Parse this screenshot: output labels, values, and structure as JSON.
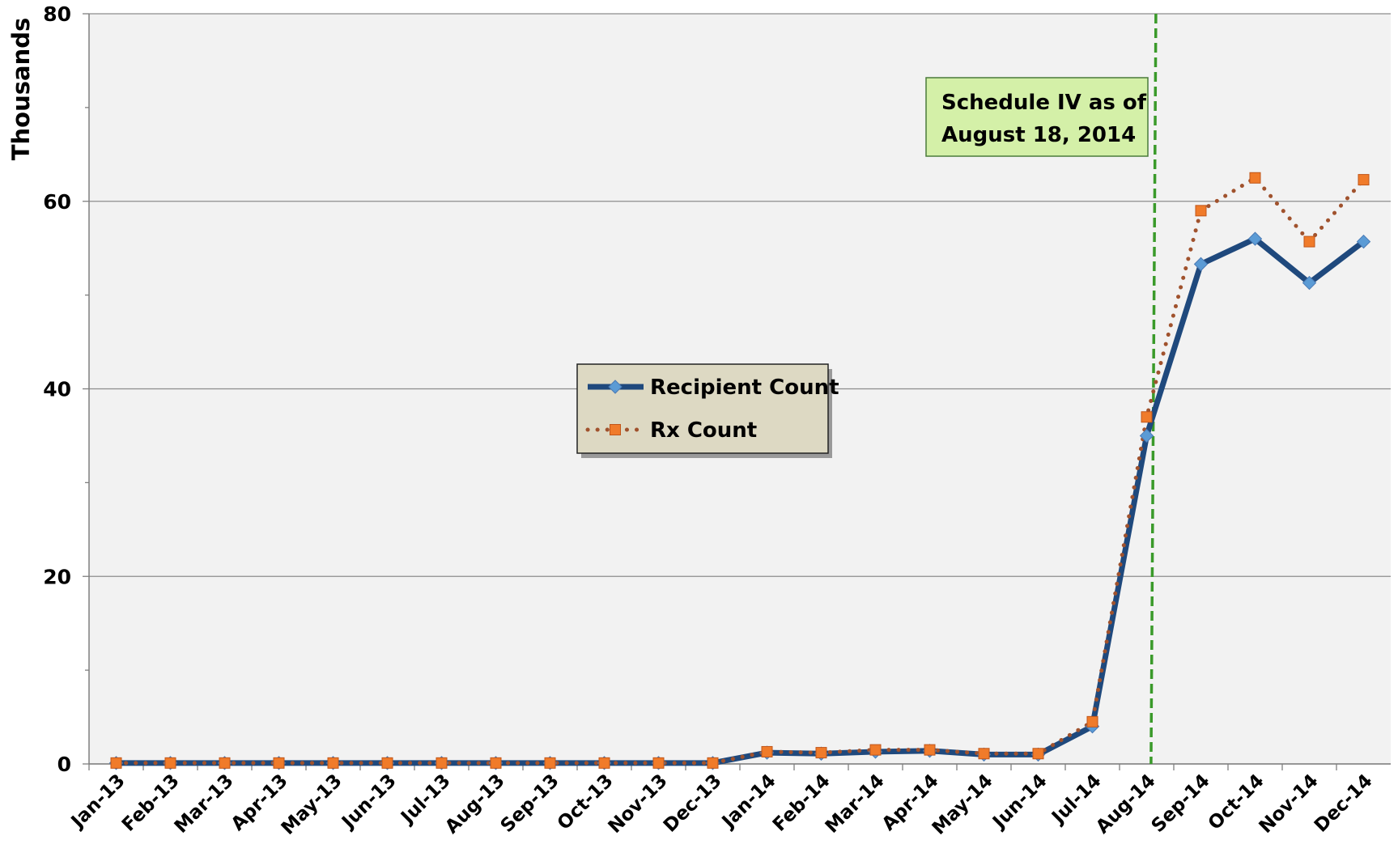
{
  "chart_data": {
    "type": "line",
    "y_axis_label": "Thousands",
    "categories": [
      "Jan-13",
      "Feb-13",
      "Mar-13",
      "Apr-13",
      "May-13",
      "Jun-13",
      "Jul-13",
      "Aug-13",
      "Sep-13",
      "Oct-13",
      "Nov-13",
      "Dec-13",
      "Jan-14",
      "Feb-14",
      "Mar-14",
      "Apr-14",
      "May-14",
      "Jun-14",
      "Jul-14",
      "Aug-14",
      "Sep-14",
      "Oct-14",
      "Nov-14",
      "Dec-14"
    ],
    "series": [
      {
        "name": "Recipient Count",
        "color": "#1f497d",
        "marker_color": "#5b9bd5",
        "values": [
          0.1,
          0.1,
          0.1,
          0.1,
          0.1,
          0.1,
          0.1,
          0.1,
          0.1,
          0.1,
          0.1,
          0.1,
          1.2,
          1.1,
          1.3,
          1.4,
          1.0,
          1.0,
          4.0,
          35,
          53.3,
          56,
          51.3,
          55.7
        ]
      },
      {
        "name": "Rx Count",
        "color": "#a0522d",
        "marker_color": "#f07b2a",
        "values": [
          0.1,
          0.1,
          0.1,
          0.1,
          0.1,
          0.1,
          0.1,
          0.1,
          0.1,
          0.1,
          0.1,
          0.1,
          1.3,
          1.2,
          1.5,
          1.5,
          1.1,
          1.1,
          4.5,
          37,
          59,
          62.5,
          55.7,
          62.3
        ]
      }
    ],
    "ylim": [
      0,
      80
    ],
    "yticks": [
      0,
      20,
      40,
      60,
      80
    ],
    "yminorticks": [
      10,
      30,
      50,
      70
    ],
    "grid": true,
    "annotation": [
      "Schedule IV as of",
      "August 18, 2014"
    ]
  }
}
